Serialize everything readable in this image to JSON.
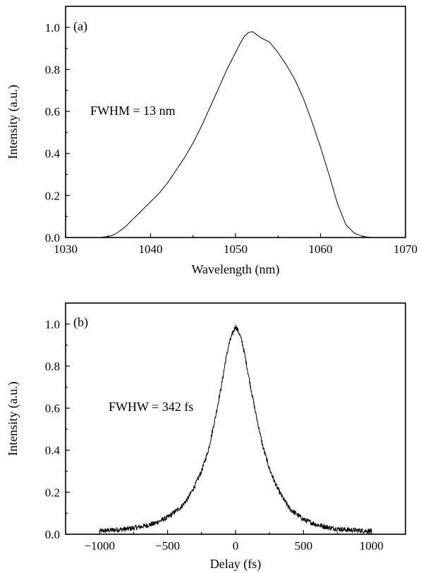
{
  "chart_data": [
    {
      "type": "line",
      "panel_label": "(a)",
      "xlabel": "Wavelength (nm)",
      "ylabel": "Intensity (a.u.)",
      "xlim": [
        1030,
        1070
      ],
      "ylim": [
        0,
        1.1
      ],
      "xticks": [
        1030,
        1040,
        1050,
        1060,
        1070
      ],
      "yticks": [
        0.0,
        0.2,
        0.4,
        0.6,
        0.8,
        1.0
      ],
      "xtick_labels": [
        "1030",
        "1040",
        "1050",
        "1060",
        "1070"
      ],
      "ytick_labels": [
        "0.0",
        "0.2",
        "0.4",
        "0.6",
        "0.8",
        "1.0"
      ],
      "annotation": "FWHM = 13 nm",
      "grid": false,
      "series": [
        {
          "x": [
            1033,
            1034,
            1035,
            1035.5,
            1036,
            1037,
            1038,
            1039,
            1040,
            1041,
            1042,
            1043,
            1044,
            1045,
            1046,
            1047,
            1048,
            1049,
            1050,
            1050.5,
            1051,
            1051.5,
            1052,
            1052.5,
            1053,
            1053.5,
            1054,
            1055,
            1056,
            1057,
            1058,
            1059,
            1060,
            1061,
            1062,
            1063,
            1064,
            1065,
            1066,
            1067
          ],
          "y": [
            0.0,
            0.0,
            0.005,
            0.01,
            0.02,
            0.05,
            0.09,
            0.13,
            0.17,
            0.21,
            0.26,
            0.32,
            0.38,
            0.45,
            0.53,
            0.62,
            0.71,
            0.8,
            0.88,
            0.92,
            0.955,
            0.975,
            0.98,
            0.965,
            0.95,
            0.94,
            0.93,
            0.88,
            0.82,
            0.75,
            0.66,
            0.55,
            0.43,
            0.3,
            0.16,
            0.06,
            0.02,
            0.005,
            0.0,
            0.0
          ]
        }
      ]
    },
    {
      "type": "line",
      "panel_label": "(b)",
      "xlabel": "Delay (fs)",
      "ylabel": "Intensity (a.u.)",
      "xlim": [
        -1250,
        1250
      ],
      "ylim": [
        0,
        1.1
      ],
      "xticks": [
        -1000,
        -500,
        0,
        500,
        1000
      ],
      "yticks": [
        0.0,
        0.2,
        0.4,
        0.6,
        0.8,
        1.0
      ],
      "xtick_labels": [
        "−1000",
        "−500",
        "0",
        "500",
        "1000"
      ],
      "ytick_labels": [
        "0.0",
        "0.2",
        "0.4",
        "0.6",
        "0.8",
        "1.0"
      ],
      "annotation": "FWHW = 342 fs",
      "grid": false,
      "series": [
        {
          "x": [
            -1000,
            -900,
            -800,
            -700,
            -600,
            -500,
            -400,
            -350,
            -300,
            -250,
            -200,
            -150,
            -100,
            -75,
            -50,
            -25,
            0,
            25,
            50,
            75,
            100,
            150,
            200,
            250,
            300,
            350,
            400,
            500,
            600,
            700,
            800,
            900,
            1000
          ],
          "y": [
            0.015,
            0.02,
            0.025,
            0.035,
            0.05,
            0.08,
            0.13,
            0.17,
            0.23,
            0.3,
            0.4,
            0.55,
            0.72,
            0.82,
            0.9,
            0.95,
            0.99,
            0.96,
            0.91,
            0.83,
            0.74,
            0.57,
            0.42,
            0.31,
            0.23,
            0.17,
            0.12,
            0.07,
            0.045,
            0.03,
            0.022,
            0.018,
            0.015
          ]
        }
      ]
    }
  ]
}
